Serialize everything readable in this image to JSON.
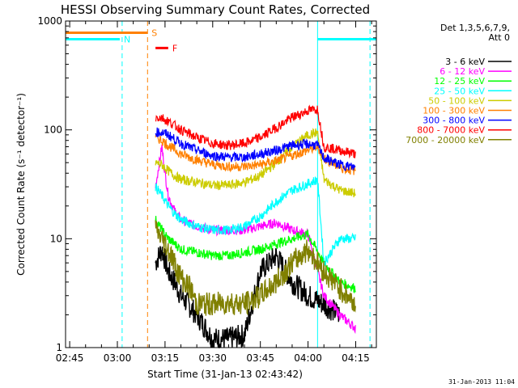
{
  "chart_data": {
    "type": "line",
    "title": "HESSI Observing Summary Count Rates, Corrected",
    "xlabel": "Start Time (31-Jan-13 02:43:42)",
    "ylabel": "Corrected Count Rate (s⁻¹ detector⁻¹)",
    "yscale": "log",
    "ylim": [
      1,
      1000
    ],
    "xlim": [
      "02:43:42",
      "04:21:30"
    ],
    "x_ticks": [
      "02:45",
      "03:00",
      "03:15",
      "03:30",
      "03:45",
      "04:00",
      "04:15"
    ],
    "y_ticks": [
      "1",
      "10",
      "100",
      "1000"
    ],
    "legend_header": [
      "Det 1,3,5,6,7,9,",
      "Att 0"
    ],
    "legend_placement": "outside-right",
    "footer_timestamp": "31-Jan-2013 11:04",
    "series": [
      {
        "name": "3 - 6 keV",
        "color": "#000000",
        "x": [
          "03:12",
          "03:14",
          "03:16",
          "03:18",
          "03:20",
          "03:25",
          "03:30",
          "03:35",
          "03:40",
          "03:45",
          "03:50",
          "03:55",
          "04:00",
          "04:05",
          "04:10"
        ],
        "y": [
          6,
          8,
          5,
          4,
          3,
          2,
          1.2,
          1.2,
          1.3,
          5,
          7,
          4,
          3,
          2.5,
          2
        ]
      },
      {
        "name": "6 - 12 keV",
        "color": "#ff00ff",
        "x": [
          "03:12",
          "03:14",
          "03:15",
          "03:16",
          "03:18",
          "03:20",
          "03:25",
          "03:30",
          "03:35",
          "03:40",
          "03:45",
          "03:50",
          "03:55",
          "04:00",
          "04:05",
          "04:10",
          "04:15"
        ],
        "y": [
          30,
          70,
          40,
          25,
          18,
          15,
          13,
          12,
          12,
          12,
          13,
          14,
          12,
          11,
          3,
          2,
          1.5
        ]
      },
      {
        "name": "12 - 25 keV",
        "color": "#00ff00",
        "x": [
          "03:12",
          "03:14",
          "03:16",
          "03:18",
          "03:20",
          "03:25",
          "03:30",
          "03:35",
          "03:40",
          "03:45",
          "03:50",
          "03:55",
          "04:00",
          "04:05",
          "04:10",
          "04:15"
        ],
        "y": [
          15,
          12,
          10,
          9,
          8,
          7.5,
          7,
          7,
          7.5,
          8,
          9,
          10,
          11,
          6,
          4,
          3.5
        ]
      },
      {
        "name": "25 - 50 keV",
        "color": "#00ffff",
        "x": [
          "03:12",
          "03:14",
          "03:16",
          "03:18",
          "03:20",
          "03:25",
          "03:30",
          "03:35",
          "03:40",
          "03:45",
          "03:50",
          "03:55",
          "04:00",
          "04:03",
          "04:05",
          "04:10",
          "04:15"
        ],
        "y": [
          30,
          25,
          20,
          17,
          15,
          13,
          12,
          12,
          13,
          16,
          22,
          28,
          32,
          35,
          6,
          10,
          10
        ]
      },
      {
        "name": "50 - 100 keV",
        "color": "#cccc00",
        "x": [
          "03:12",
          "03:14",
          "03:16",
          "03:18",
          "03:20",
          "03:25",
          "03:30",
          "03:35",
          "03:40",
          "03:45",
          "03:50",
          "03:55",
          "04:00",
          "04:03",
          "04:05",
          "04:10",
          "04:15"
        ],
        "y": [
          50,
          48,
          42,
          38,
          35,
          33,
          31,
          31,
          33,
          38,
          50,
          70,
          90,
          95,
          35,
          28,
          26
        ]
      },
      {
        "name": "100 - 300 keV",
        "color": "#ff8000",
        "x": [
          "03:12",
          "03:14",
          "03:16",
          "03:18",
          "03:20",
          "03:25",
          "03:30",
          "03:35",
          "03:40",
          "03:45",
          "03:50",
          "03:55",
          "04:00",
          "04:03",
          "04:05",
          "04:10",
          "04:15"
        ],
        "y": [
          85,
          80,
          72,
          66,
          60,
          53,
          48,
          46,
          46,
          48,
          52,
          58,
          65,
          70,
          55,
          45,
          42
        ]
      },
      {
        "name": "300 - 800 keV",
        "color": "#0000ff",
        "x": [
          "03:12",
          "03:14",
          "03:16",
          "03:18",
          "03:20",
          "03:25",
          "03:30",
          "03:35",
          "03:40",
          "03:45",
          "03:50",
          "03:55",
          "04:00",
          "04:03",
          "04:05",
          "04:10",
          "04:15"
        ],
        "y": [
          95,
          95,
          90,
          82,
          75,
          65,
          58,
          56,
          56,
          60,
          65,
          72,
          74,
          72,
          55,
          48,
          45
        ]
      },
      {
        "name": "800 - 7000 keV",
        "color": "#ff0000",
        "x": [
          "03:12",
          "03:14",
          "03:16",
          "03:18",
          "03:20",
          "03:25",
          "03:30",
          "03:35",
          "03:40",
          "03:45",
          "03:50",
          "03:55",
          "04:00",
          "04:03",
          "04:05",
          "04:10",
          "04:15"
        ],
        "y": [
          130,
          130,
          120,
          110,
          100,
          85,
          75,
          72,
          75,
          85,
          105,
          130,
          150,
          155,
          70,
          65,
          60
        ]
      },
      {
        "name": "7000 - 20000 keV",
        "color": "#808000",
        "x": [
          "03:12",
          "03:14",
          "03:15",
          "03:17",
          "03:19",
          "03:21",
          "03:23",
          "03:25",
          "03:30",
          "03:35",
          "03:40",
          "03:45",
          "03:50",
          "03:55",
          "04:00",
          "04:05",
          "04:10",
          "04:15"
        ],
        "y": [
          12,
          10,
          9,
          7,
          5,
          4,
          3.5,
          2.5,
          2.5,
          2.6,
          2.5,
          3,
          4,
          6,
          8,
          5,
          3.5,
          2.5
        ]
      }
    ],
    "flags": [
      {
        "label": "S",
        "color": "#ff8000",
        "x": [
          "02:43:42",
          "03:09:30"
        ],
        "y": 780
      },
      {
        "label": "F",
        "color": "#ff0000",
        "x": [
          "03:12",
          "03:16"
        ],
        "y": 565
      },
      {
        "label": "N",
        "color": "#00ffff",
        "x": [
          "02:43:42",
          "03:00:45"
        ],
        "y": 680
      },
      {
        "label": "",
        "color": "#00ffff",
        "x": [
          "04:03",
          "04:21:30"
        ],
        "y": 680
      }
    ],
    "vlines": [
      {
        "x": "03:01:30",
        "color": "#00ffff",
        "style": "dashed"
      },
      {
        "x": "03:09:30",
        "color": "#ff8000",
        "style": "dashed"
      },
      {
        "x": "04:03",
        "color": "#00ffff",
        "style": "solid"
      },
      {
        "x": "04:19:30",
        "color": "#00ffff",
        "style": "dashed"
      }
    ]
  }
}
